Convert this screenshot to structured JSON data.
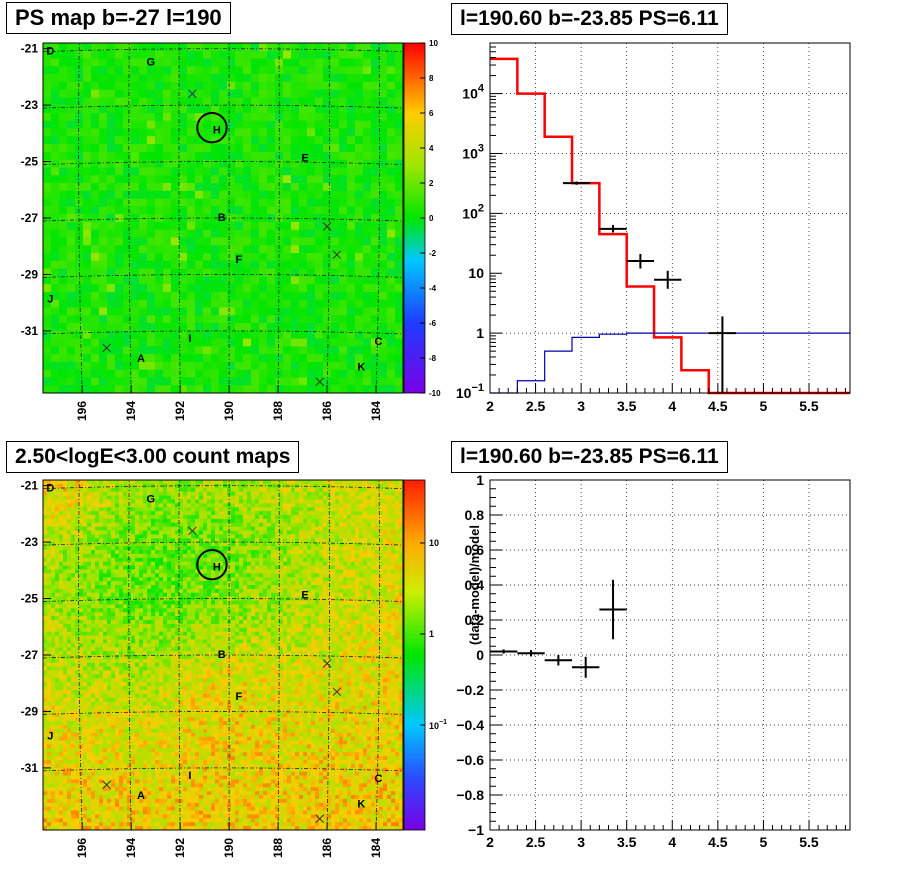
{
  "chart_data": [
    {
      "type": "heatmap",
      "title": "PS map b=-27 l=190",
      "xticks": [
        "196",
        "194",
        "192",
        "190",
        "188",
        "186",
        "184"
      ],
      "xtick_values": [
        196,
        194,
        192,
        190,
        188,
        186,
        184
      ],
      "xlim": [
        197.6,
        182.9
      ],
      "yticks": [
        "-21",
        "-23",
        "-25",
        "-27",
        "-29",
        "-31"
      ],
      "ytick_values": [
        -21,
        -23,
        -25,
        -27,
        -29,
        -31
      ],
      "ylim": [
        -33.2,
        -20.8
      ],
      "colorbar": {
        "scale": "linear",
        "range": [
          -10,
          10
        ],
        "ticks": [
          "10",
          "8",
          "6",
          "4",
          "2",
          "0",
          "-2",
          "-4",
          "-6",
          "-8",
          "-10"
        ]
      },
      "annotations": [
        {
          "label": "D",
          "l": 197.3,
          "b": -21.2
        },
        {
          "label": "G",
          "l": 193.2,
          "b": -21.6
        },
        {
          "label": "H",
          "l": 190.5,
          "b": -24.0
        },
        {
          "label": "E",
          "l": 186.9,
          "b": -25.0
        },
        {
          "label": "B",
          "l": 190.3,
          "b": -27.1
        },
        {
          "label": "F",
          "l": 189.6,
          "b": -28.6
        },
        {
          "label": "J",
          "l": 197.3,
          "b": -30.0
        },
        {
          "label": "C",
          "l": 183.9,
          "b": -31.5
        },
        {
          "label": "A",
          "l": 193.6,
          "b": -32.1
        },
        {
          "label": "I",
          "l": 191.6,
          "b": -31.4
        },
        {
          "label": "K",
          "l": 184.6,
          "b": -32.4
        }
      ],
      "markers": [
        {
          "l": 191.5,
          "b": -22.6
        },
        {
          "l": 186.0,
          "b": -27.3
        },
        {
          "l": 185.6,
          "b": -28.3
        },
        {
          "l": 195.0,
          "b": -31.6
        },
        {
          "l": 186.3,
          "b": -32.8
        }
      ],
      "circle": {
        "l": 190.7,
        "b": -23.8,
        "radius_deg": 0.6
      }
    },
    {
      "type": "line",
      "title": "l=190.60 b=-23.85 PS=6.11",
      "xlabel": "",
      "ylabel": "",
      "xlim": [
        2,
        5.95
      ],
      "ylim": [
        0.1,
        70000
      ],
      "yscale": "log",
      "xticks": [
        "2",
        "2.5",
        "3",
        "3.5",
        "4",
        "4.5",
        "5",
        "5.5"
      ],
      "yticks": [
        "10^-1",
        "1",
        "10",
        "10^2",
        "10^3",
        "10^4"
      ],
      "grid": true,
      "series": [
        {
          "color": "#ff0000",
          "style": "step",
          "edges": [
            2,
            2.3,
            2.6,
            2.9,
            3.2,
            3.5,
            3.8,
            4.1,
            4.4,
            4.7,
            5.0,
            5.3,
            5.6,
            5.95
          ],
          "values": [
            38000,
            10000,
            1900,
            320,
            45,
            6,
            0.85,
            0.24,
            0.1,
            0.1,
            0.1,
            0.1,
            0.1
          ]
        },
        {
          "color": "#0000aa",
          "style": "step",
          "edges": [
            2,
            2.3,
            2.6,
            2.9,
            3.2,
            3.5,
            3.8,
            4.1,
            4.4,
            4.7,
            5.0,
            5.3,
            5.6,
            5.95
          ],
          "values": [
            0.1,
            0.16,
            0.5,
            0.85,
            0.96,
            1.0,
            1.0,
            1.0,
            1.0,
            1.0,
            1.0,
            1.0,
            1.0
          ]
        },
        {
          "color": "#000000",
          "style": "points",
          "points": [
            {
              "x": 2.95,
              "y": 320,
              "xerr": 0.15,
              "ylo": 300,
              "yhi": 340
            },
            {
              "x": 3.35,
              "y": 55,
              "xerr": 0.15,
              "ylo": 48,
              "yhi": 64
            },
            {
              "x": 3.65,
              "y": 16,
              "xerr": 0.15,
              "ylo": 12,
              "yhi": 21
            },
            {
              "x": 3.95,
              "y": 7.8,
              "xerr": 0.15,
              "ylo": 5.5,
              "yhi": 11
            },
            {
              "x": 4.55,
              "y": 1.0,
              "xerr": 0.15,
              "ylo": 0.1,
              "yhi": 1.9
            }
          ]
        }
      ]
    },
    {
      "type": "heatmap",
      "title": "2.50<logE<3.00 count maps",
      "xticks": [
        "196",
        "194",
        "192",
        "190",
        "188",
        "186",
        "184"
      ],
      "xtick_values": [
        196,
        194,
        192,
        190,
        188,
        186,
        184
      ],
      "xlim": [
        197.6,
        182.9
      ],
      "yticks": [
        "-21",
        "-23",
        "-25",
        "-27",
        "-29",
        "-31"
      ],
      "ytick_values": [
        -21,
        -23,
        -25,
        -27,
        -29,
        -31
      ],
      "ylim": [
        -33.2,
        -20.8
      ],
      "colorbar": {
        "scale": "log",
        "ticks": [
          "10",
          "1",
          "10^-1"
        ]
      },
      "annotations": [
        {
          "label": "D",
          "l": 197.3,
          "b": -21.2
        },
        {
          "label": "G",
          "l": 193.2,
          "b": -21.6
        },
        {
          "label": "H",
          "l": 190.5,
          "b": -24.0
        },
        {
          "label": "E",
          "l": 186.9,
          "b": -25.0
        },
        {
          "label": "B",
          "l": 190.3,
          "b": -27.1
        },
        {
          "label": "F",
          "l": 189.6,
          "b": -28.6
        },
        {
          "label": "J",
          "l": 197.3,
          "b": -30.0
        },
        {
          "label": "C",
          "l": 183.9,
          "b": -31.5
        },
        {
          "label": "A",
          "l": 193.6,
          "b": -32.1
        },
        {
          "label": "I",
          "l": 191.6,
          "b": -31.4
        },
        {
          "label": "K",
          "l": 184.6,
          "b": -32.4
        }
      ],
      "markers": [
        {
          "l": 191.5,
          "b": -22.6
        },
        {
          "l": 186.0,
          "b": -27.3
        },
        {
          "l": 185.6,
          "b": -28.3
        },
        {
          "l": 195.0,
          "b": -31.6
        },
        {
          "l": 186.3,
          "b": -32.8
        }
      ],
      "circle": {
        "l": 190.7,
        "b": -23.8,
        "radius_deg": 0.6
      }
    },
    {
      "type": "scatter",
      "title": "l=190.60 b=-23.85 PS=6.11",
      "xlabel": "",
      "ylabel": "(data-model)/model",
      "xlim": [
        2,
        5.95
      ],
      "ylim": [
        -1,
        1
      ],
      "xticks": [
        "2",
        "2.5",
        "3",
        "3.5",
        "4",
        "4.5",
        "5",
        "5.5"
      ],
      "yticks": [
        "−1",
        "−0.8",
        "−0.6",
        "−0.4",
        "−0.2",
        "0",
        "0.2",
        "0.4",
        "0.6",
        "0.8",
        "1"
      ],
      "ytick_values": [
        -1,
        -0.8,
        -0.6,
        -0.4,
        -0.2,
        0,
        0.2,
        0.4,
        0.6,
        0.8,
        1
      ],
      "grid": true,
      "points": [
        {
          "x": 2.15,
          "y": 0.02,
          "xerr": 0.15,
          "yerr": 0.012
        },
        {
          "x": 2.45,
          "y": 0.01,
          "xerr": 0.15,
          "yerr": 0.018
        },
        {
          "x": 2.75,
          "y": -0.03,
          "xerr": 0.15,
          "yerr": 0.03
        },
        {
          "x": 3.05,
          "y": -0.07,
          "xerr": 0.15,
          "yerr": 0.06
        },
        {
          "x": 3.35,
          "y": 0.26,
          "xerr": 0.15,
          "yerr": 0.17
        }
      ]
    }
  ]
}
